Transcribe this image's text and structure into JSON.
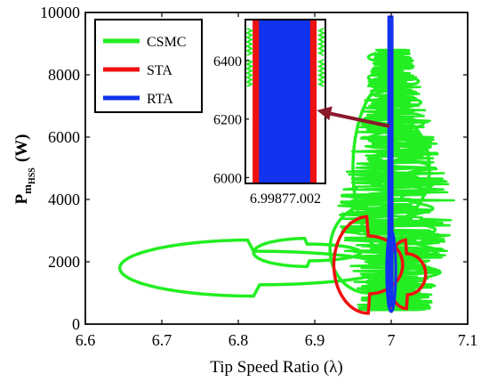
{
  "chart_data": {
    "type": "line",
    "title": "",
    "xlabel": "Tip Speed Ratio (λ)",
    "ylabel": {
      "main": "P",
      "sub": "m",
      "subsub": "HSS",
      "unit": "(W)"
    },
    "xlim": [
      6.6,
      7.1
    ],
    "ylim": [
      0,
      10000
    ],
    "xticks": [
      "6.6",
      "6.7",
      "6.8",
      "6.9",
      "7",
      "7.1"
    ],
    "yticks": [
      "0",
      "2000",
      "4000",
      "6000",
      "8000",
      "10000"
    ],
    "grid": false,
    "legend_position": "top-left",
    "series": [
      {
        "name": "CSMC",
        "color": "#22ee22",
        "loops": [
          {
            "cx": 6.82,
            "cy": 1800,
            "rx": 0.175,
            "ry": 900
          },
          {
            "cx": 6.89,
            "cy": 2300,
            "rx": 0.07,
            "ry": 450
          },
          {
            "cx": 6.97,
            "cy": 2400,
            "rx": 0.05,
            "ry": 1400
          },
          {
            "cx": 7.0,
            "cy": 5000,
            "rx": 0.05,
            "ry": 2800
          }
        ],
        "x_range": [
          6.65,
          7.09
        ],
        "y_range": [
          450,
          8800
        ]
      },
      {
        "name": "STA",
        "color": "#ee1111",
        "loops": [
          {
            "cx": 6.97,
            "cy": 1900,
            "rx": 0.045,
            "ry": 1550
          },
          {
            "cx": 7.02,
            "cy": 1600,
            "rx": 0.025,
            "ry": 1100
          }
        ],
        "x_range": [
          6.925,
          7.045
        ],
        "y_range": [
          500,
          9700
        ]
      },
      {
        "name": "RTA",
        "color": "#1133ee",
        "x_range": [
          6.995,
          7.003
        ],
        "y_range": [
          550,
          9900
        ]
      }
    ],
    "inset": {
      "xlim": [
        6.9975,
        7.0025
      ],
      "ylim": [
        5980,
        6540
      ],
      "xtick_label": "6.99877.002",
      "yticks": [
        "6000",
        "6200",
        "6400"
      ],
      "csmc_x": [
        6.99755,
        7.00245
      ],
      "sta_x": [
        6.99795,
        7.00195
      ],
      "rta_x": [
        6.99835,
        7.00155
      ]
    },
    "annotation": {
      "type": "arrow",
      "color": "#8b1a2b",
      "from": {
        "x": 7.0,
        "y": 6350
      },
      "to_inset": {
        "x": 7.0018,
        "y": 6230
      }
    }
  }
}
